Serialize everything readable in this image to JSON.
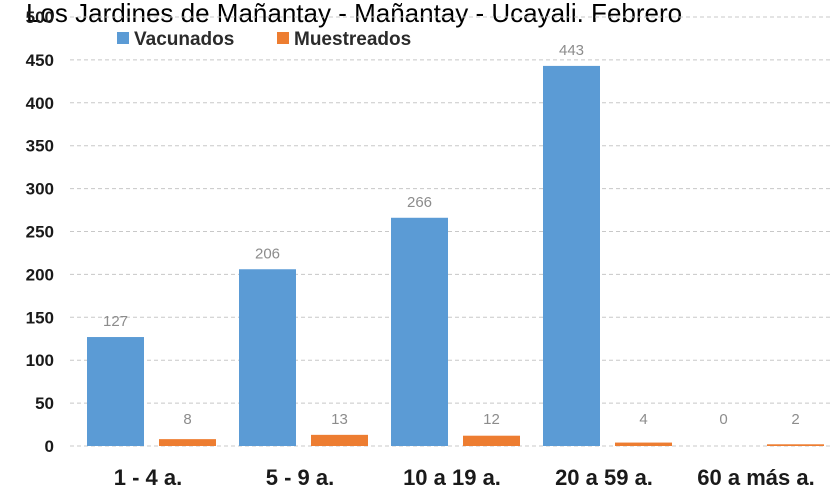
{
  "chart_data": {
    "type": "bar",
    "title": "Los Jardines de Mañantay - Mañantay - Ucayali. Febrero",
    "categories": [
      "1 - 4 a.",
      "5 - 9 a.",
      "10 a 19 a.",
      "20 a 59 a.",
      "60 a más a."
    ],
    "series": [
      {
        "name": "Vacunados",
        "values": [
          127,
          206,
          266,
          443,
          0
        ],
        "color": "#5b9bd5"
      },
      {
        "name": "Muestreados",
        "values": [
          8,
          13,
          12,
          4,
          2
        ],
        "color": "#ed7d31"
      }
    ],
    "yticks": [
      "0",
      "50",
      "100",
      "150",
      "200",
      "250",
      "300",
      "350",
      "400",
      "450",
      "500"
    ],
    "ylim": [
      0,
      500
    ],
    "grid": true,
    "legend_position": "top-left",
    "xlabel": "",
    "ylabel": ""
  }
}
